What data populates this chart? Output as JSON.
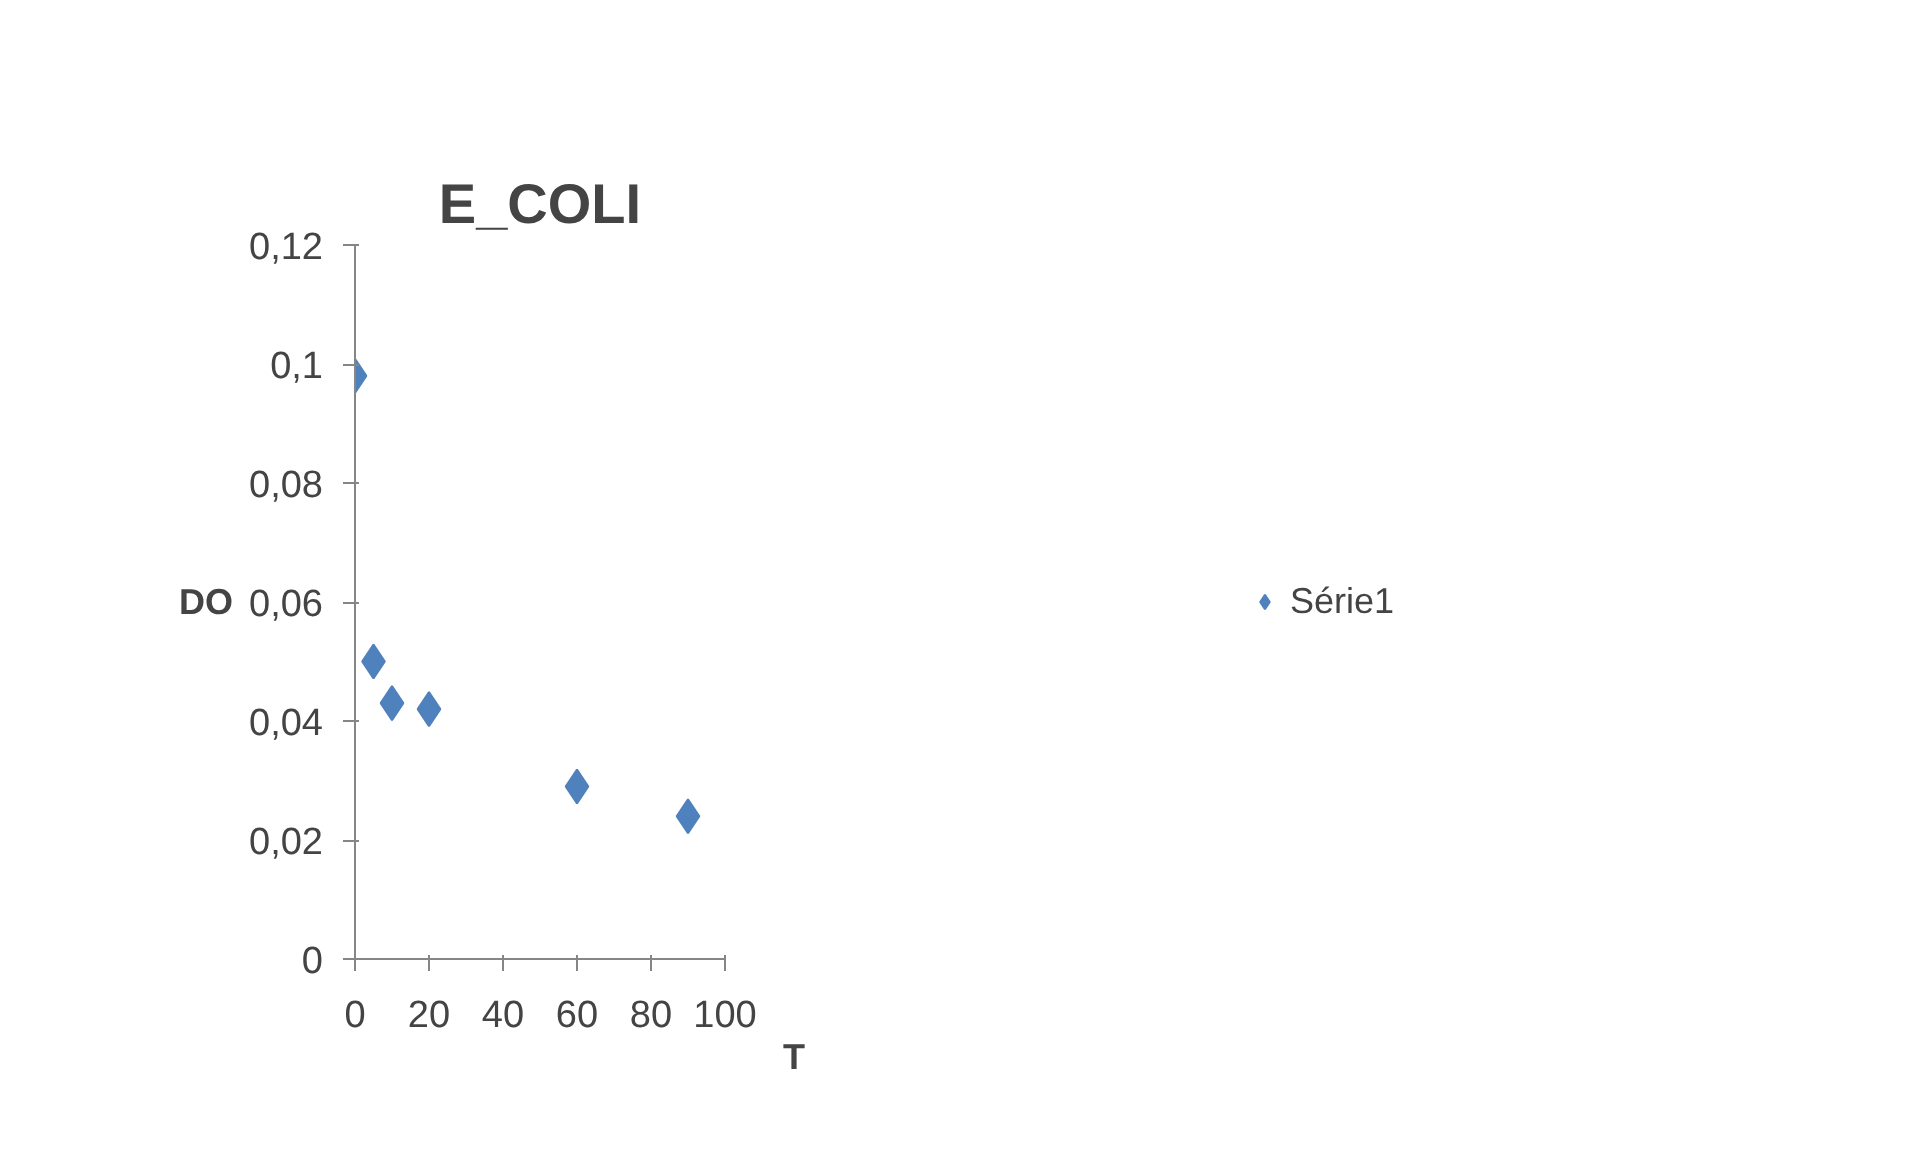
{
  "chart_data": {
    "type": "scatter",
    "title": "E_COLI",
    "xlabel": "T",
    "ylabel": "DO",
    "x": [
      0,
      5,
      10,
      20,
      60,
      90
    ],
    "series": [
      {
        "name": "Série1",
        "color": "#4f81bd",
        "values": [
          0.098,
          0.05,
          0.043,
          0.042,
          0.029,
          0.024
        ]
      }
    ],
    "xlim": [
      0,
      100
    ],
    "xticks": [
      0,
      20,
      40,
      60,
      80,
      100
    ],
    "ylim": [
      0,
      0.12
    ],
    "yticks": [
      {
        "value": 0,
        "label": "0"
      },
      {
        "value": 0.02,
        "label": "0,02"
      },
      {
        "value": 0.04,
        "label": "0,04"
      },
      {
        "value": 0.06,
        "label": "0,06"
      },
      {
        "value": 0.08,
        "label": "0,08"
      },
      {
        "value": 0.1,
        "label": "0,1"
      },
      {
        "value": 0.12,
        "label": "0,12"
      }
    ],
    "grid": false,
    "legend": "right",
    "marker": "diamond"
  }
}
